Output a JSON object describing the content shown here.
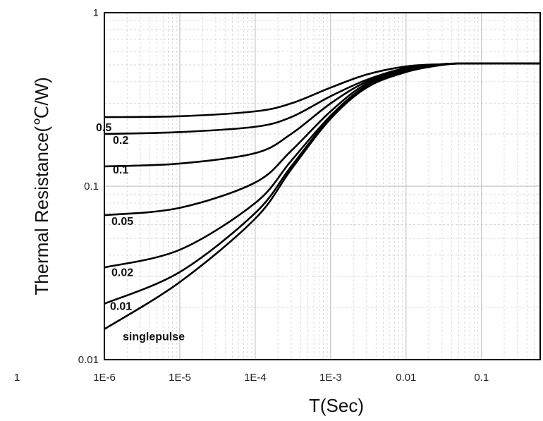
{
  "chart_data": {
    "type": "line",
    "title": "",
    "xlabel": "T(Sec)",
    "ylabel": "Thermal Resistance(℃/W)",
    "x_scale": "log",
    "y_scale": "log",
    "xlim": [
      1e-06,
      0.6
    ],
    "ylim": [
      0.01,
      1
    ],
    "grid": true,
    "x_tick_labels": [
      {
        "value": 1e-06,
        "label": "1E-6"
      },
      {
        "value": 1e-05,
        "label": "1E-5"
      },
      {
        "value": 0.0001,
        "label": "1E-4"
      },
      {
        "value": 0.001,
        "label": "1E-3"
      },
      {
        "value": 0.01,
        "label": "0.01"
      },
      {
        "value": 0.1,
        "label": "0.1"
      },
      {
        "value": 1,
        "label": "1"
      }
    ],
    "y_tick_labels": [
      {
        "value": 1,
        "label": "1"
      },
      {
        "value": 0.1,
        "label": "0.1"
      },
      {
        "value": 0.01,
        "label": "0.01"
      }
    ],
    "series": [
      {
        "name": "0.5",
        "x": [
          1e-06,
          1e-05,
          0.0001,
          0.0003,
          0.001,
          0.003,
          0.01,
          0.03,
          0.06,
          0.6
        ],
        "values": [
          0.25,
          0.253,
          0.27,
          0.3,
          0.37,
          0.44,
          0.49,
          0.505,
          0.51,
          0.51
        ]
      },
      {
        "name": "0.2",
        "x": [
          1e-06,
          1e-05,
          0.0001,
          0.0003,
          0.001,
          0.003,
          0.01,
          0.03,
          0.06,
          0.6
        ],
        "values": [
          0.2,
          0.205,
          0.22,
          0.25,
          0.33,
          0.41,
          0.48,
          0.505,
          0.51,
          0.51
        ]
      },
      {
        "name": "0.1",
        "x": [
          1e-06,
          1e-05,
          0.0001,
          0.0003,
          0.001,
          0.003,
          0.01,
          0.03,
          0.06,
          0.6
        ],
        "values": [
          0.13,
          0.135,
          0.155,
          0.2,
          0.3,
          0.4,
          0.47,
          0.5,
          0.51,
          0.51
        ]
      },
      {
        "name": "0.05",
        "x": [
          1e-06,
          1e-05,
          0.0001,
          0.0003,
          0.001,
          0.003,
          0.01,
          0.03,
          0.06,
          0.6
        ],
        "values": [
          0.068,
          0.075,
          0.105,
          0.16,
          0.27,
          0.39,
          0.465,
          0.5,
          0.51,
          0.51
        ]
      },
      {
        "name": "0.02",
        "x": [
          1e-06,
          1e-05,
          0.0001,
          0.0003,
          0.001,
          0.003,
          0.01,
          0.03,
          0.06,
          0.6
        ],
        "values": [
          0.034,
          0.043,
          0.08,
          0.14,
          0.255,
          0.38,
          0.46,
          0.5,
          0.51,
          0.51
        ]
      },
      {
        "name": "0.01",
        "x": [
          1e-06,
          1e-05,
          0.0001,
          0.0003,
          0.001,
          0.003,
          0.01,
          0.03,
          0.06,
          0.6
        ],
        "values": [
          0.021,
          0.032,
          0.07,
          0.13,
          0.25,
          0.375,
          0.46,
          0.5,
          0.51,
          0.51
        ]
      },
      {
        "name": "singlepulse",
        "x": [
          1e-06,
          1e-05,
          0.0001,
          0.0003,
          0.001,
          0.003,
          0.01,
          0.03,
          0.06,
          0.6
        ],
        "values": [
          0.015,
          0.028,
          0.065,
          0.125,
          0.245,
          0.37,
          0.455,
          0.5,
          0.51,
          0.51
        ]
      }
    ]
  }
}
